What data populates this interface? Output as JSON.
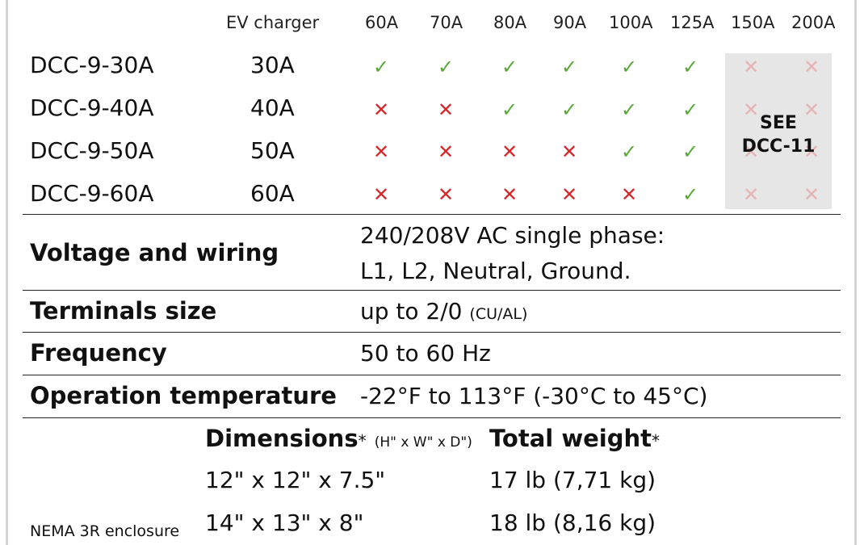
{
  "header": {
    "ev_charger": "EV charger",
    "columns": [
      "60A",
      "70A",
      "80A",
      "90A",
      "100A",
      "125A",
      "150A",
      "200A"
    ]
  },
  "rows": [
    {
      "model": "DCC-9-30A",
      "rating": "30A",
      "marks": [
        "yes",
        "yes",
        "yes",
        "yes",
        "yes",
        "yes",
        "no",
        "no"
      ]
    },
    {
      "model": "DCC-9-40A",
      "rating": "40A",
      "marks": [
        "no",
        "no",
        "yes",
        "yes",
        "yes",
        "yes",
        "no",
        "no"
      ]
    },
    {
      "model": "DCC-9-50A",
      "rating": "50A",
      "marks": [
        "no",
        "no",
        "no",
        "no",
        "yes",
        "yes",
        "no",
        "no"
      ]
    },
    {
      "model": "DCC-9-60A",
      "rating": "60A",
      "marks": [
        "no",
        "no",
        "no",
        "no",
        "no",
        "yes",
        "no",
        "no"
      ]
    }
  ],
  "see_note": {
    "line1": "SEE",
    "line2": "DCC-11"
  },
  "specs": {
    "voltage_label": "Voltage and wiring",
    "voltage_line1": "240/208V AC single phase:",
    "voltage_line2": "L1, L2, Neutral, Ground.",
    "terminals_label": "Terminals size",
    "terminals_value": "up to 2/0",
    "terminals_note": "(CU/AL)",
    "frequency_label": "Frequency",
    "frequency_value": "50 to 60 Hz",
    "temp_label": "Operation temperature",
    "temp_value": "-22°F to 113°F (-30°C to 45°C)"
  },
  "dimensions": {
    "dims_label": "Dimensions",
    "dims_star": "*",
    "dims_units": "(H\" x W\" x D\")",
    "weight_label": "Total weight",
    "weight_star": "*",
    "rows": [
      {
        "dims": "12\" x 12\" x 7.5\"",
        "weight": "17 lb (7,71 kg)"
      },
      {
        "dims": "14\" x 13\" x 8\"",
        "weight": "18 lb (8,16 kg)"
      }
    ],
    "enclosure": "NEMA 3R enclosure"
  },
  "colors": {
    "check": "#5aa83a",
    "cross": "#d8262a",
    "faded_cross": "#e6b3b3",
    "grey_box": "#e6e6e6"
  }
}
